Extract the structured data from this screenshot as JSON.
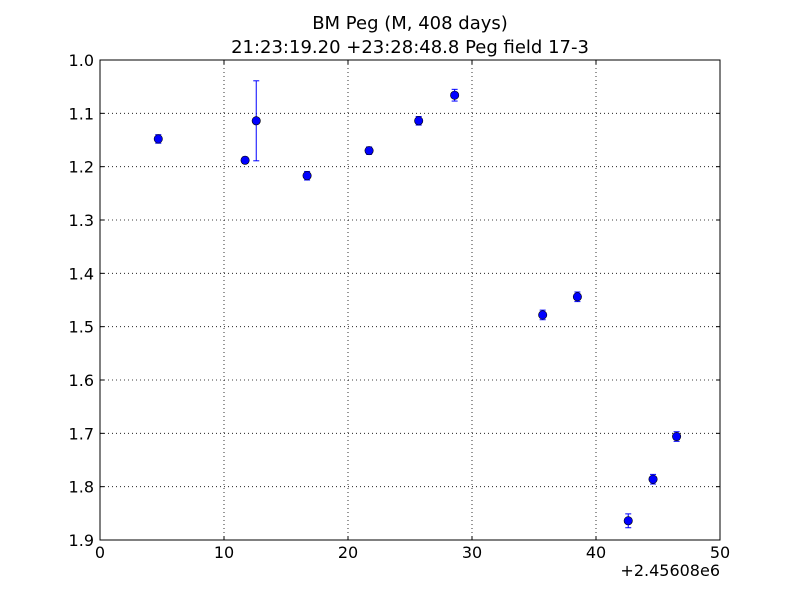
{
  "chart_data": {
    "type": "scatter",
    "title_line1": "BM Peg (M, 408 days)",
    "title_line2": "21:23:19.20 +23:28:48.8 Peg field 17-3",
    "xlabel": "",
    "ylabel": "",
    "x_offset_label": "+2.45608e6",
    "xlim": [
      0,
      50
    ],
    "ylim": [
      1.0,
      1.9
    ],
    "y_inverted": true,
    "grid": true,
    "grid_style": "dotted",
    "x_ticks": [
      0,
      10,
      20,
      30,
      40,
      50
    ],
    "x_tick_labels": [
      "0",
      "10",
      "20",
      "30",
      "40",
      "50"
    ],
    "y_ticks": [
      1.0,
      1.1,
      1.2,
      1.3,
      1.4,
      1.5,
      1.6,
      1.7,
      1.8,
      1.9
    ],
    "y_tick_labels": [
      "1.0",
      "1.1",
      "1.2",
      "1.3",
      "1.4",
      "1.5",
      "1.6",
      "1.7",
      "1.8",
      "1.9"
    ],
    "marker_color": "#0000ff",
    "series": [
      {
        "x": [
          4.7,
          11.7,
          12.6,
          16.7,
          21.7,
          25.7,
          28.6,
          35.7,
          38.5,
          42.6,
          44.6,
          46.5
        ],
        "y": [
          1.148,
          1.188,
          1.114,
          1.217,
          1.17,
          1.114,
          1.066,
          1.478,
          1.444,
          1.864,
          1.786,
          1.706
        ],
        "yerr": [
          0.008,
          0.006,
          0.075,
          0.008,
          0.007,
          0.008,
          0.011,
          0.009,
          0.009,
          0.013,
          0.009,
          0.009
        ]
      }
    ]
  }
}
